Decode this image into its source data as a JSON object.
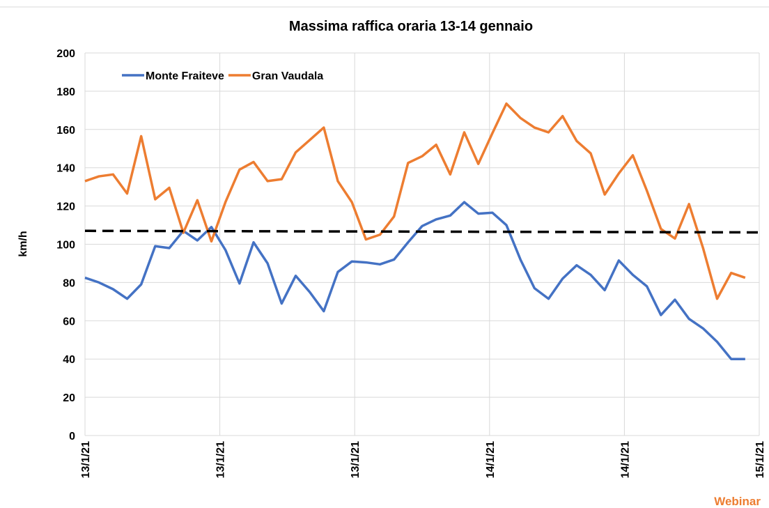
{
  "chart_data": {
    "type": "line",
    "title": "Massima raffica oraria 13-14 gennaio",
    "y_label": "km/h",
    "x": [
      0,
      1,
      2,
      3,
      4,
      5,
      6,
      7,
      8,
      9,
      10,
      11,
      12,
      13,
      14,
      15,
      16,
      17,
      18,
      19,
      20,
      21,
      22,
      23,
      24,
      25,
      26,
      27,
      28,
      29,
      30,
      31,
      32,
      33,
      34,
      35,
      36,
      37,
      38,
      39,
      40,
      41,
      42,
      43,
      44,
      45,
      46,
      47
    ],
    "series": [
      {
        "name": "Monte Fraiteve",
        "color": "#4472c4",
        "values": [
          82.5,
          80,
          76.5,
          71.5,
          79,
          99,
          98,
          107,
          102,
          109,
          97,
          79.5,
          101,
          90,
          69,
          83.5,
          75,
          65,
          85.5,
          91,
          90.5,
          89.5,
          92,
          101,
          109.5,
          113,
          115,
          122,
          116,
          116.5,
          110,
          92,
          77,
          71.5,
          82,
          89,
          84,
          76,
          91.5,
          84,
          78,
          63,
          71,
          61,
          56,
          49,
          40,
          40
        ]
      },
      {
        "name": "Gran Vaudala",
        "color": "#ed7d31",
        "values": [
          133,
          135.5,
          136.5,
          126.5,
          156.5,
          123.5,
          129.5,
          106,
          123,
          101.5,
          122,
          139,
          143,
          133,
          134,
          148,
          154.5,
          161,
          133,
          122,
          102.5,
          105,
          114.5,
          142.5,
          146,
          152,
          136.5,
          158.5,
          142,
          158,
          173.5,
          166,
          161,
          158.5,
          167,
          154,
          147.5,
          126,
          137,
          146.5,
          128,
          108,
          103,
          121,
          98,
          71.5,
          85,
          82.5
        ]
      }
    ],
    "trendline": {
      "x": [
        0,
        48
      ],
      "values": [
        107,
        106.2
      ],
      "color": "#000000"
    },
    "xlim": [
      0,
      48
    ],
    "xticks": [
      {
        "value": 0,
        "label": "13/1/21"
      },
      {
        "value": 9.6,
        "label": "13/1/21"
      },
      {
        "value": 19.2,
        "label": "13/1/21"
      },
      {
        "value": 28.8,
        "label": "14/1/21"
      },
      {
        "value": 38.4,
        "label": "14/1/21"
      },
      {
        "value": 48,
        "label": "15/1/21"
      }
    ],
    "ylim": [
      0,
      200
    ],
    "yticks": [
      0,
      20,
      40,
      60,
      80,
      100,
      120,
      140,
      160,
      180,
      200
    ],
    "grid": true,
    "legend": "top-left",
    "watermark": "Webinar"
  }
}
